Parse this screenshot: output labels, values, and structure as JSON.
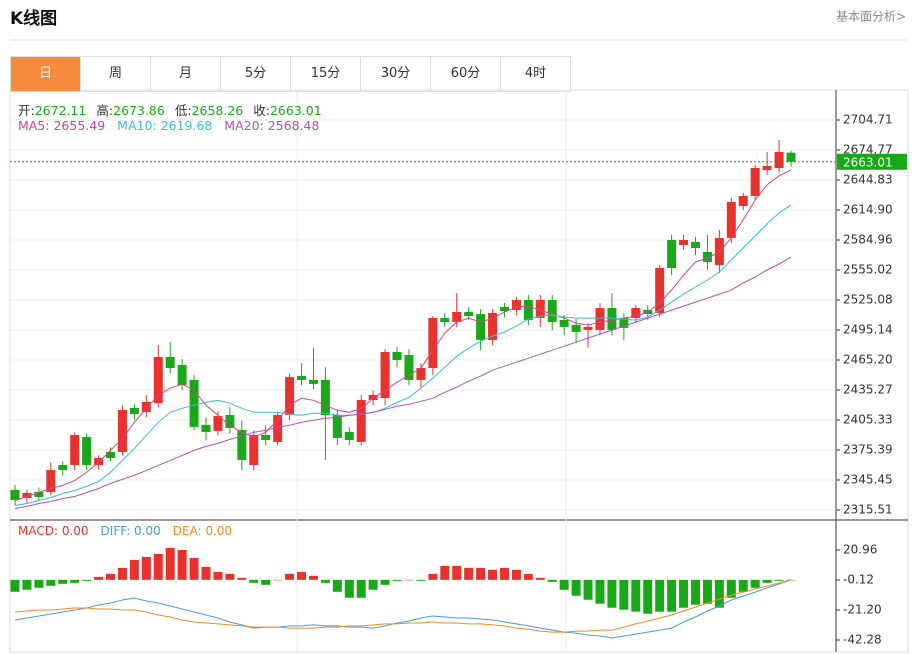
{
  "header": {
    "title": "K线图",
    "link": "基本面分析>"
  },
  "tabs": [
    "日",
    "周",
    "月",
    "5分",
    "15分",
    "30分",
    "60分",
    "4时"
  ],
  "active_tab": 0,
  "active_color": "#f58b3c",
  "quote": [
    {
      "label": "开:",
      "value": "2672.11"
    },
    {
      "label": "高:",
      "value": "2673.86"
    },
    {
      "label": "低:",
      "value": "2658.26"
    },
    {
      "label": "收:",
      "value": "2663.01"
    }
  ],
  "quote_color": "#18a818",
  "chart_data": [
    {
      "type": "candlestick",
      "ylim": [
        2307.51,
        2729.66
      ],
      "yticks": [
        2704.71,
        2674.77,
        2644.83,
        {
          "value": 2614.9,
          "label": "2614.90"
        },
        2584.96,
        2555.02,
        2525.08,
        2495.14,
        {
          "value": 2465.2,
          "label": "2465.20"
        },
        2435.27,
        2405.33,
        2375.39,
        2345.45,
        2315.51
      ],
      "grid": true,
      "up_color": "#e8322e",
      "down_color": "#18a818",
      "open": [
        2335.5,
        2327.5,
        2333.5,
        2333.5,
        2360.4,
        2360.4,
        2388.4,
        2360.4,
        2373.4,
        2373.4,
        2417.3,
        2413.3,
        2422.3,
        2468.2,
        2460.2,
        2445.3,
        2400.4,
        2394.4,
        2410.3,
        2395.4,
        2360.4,
        2390.4,
        2383.4,
        2410.3,
        2449.3,
        2445.3,
        2445.3,
        2410.3,
        2393.4,
        2383.4,
        2425.3,
        2427.3,
        2473.2,
        2470.2,
        2445.3,
        2457.2,
        2507.1,
        2503.1,
        2513.1,
        2511.1,
        2485.2,
        2518.1,
        2515.1,
        2525.1,
        2507.1,
        2525.1,
        2505.1,
        2500.2,
        2495.2,
        2495.2,
        2517.1,
        2507.1,
        2507.1,
        2515.1,
        2512.1,
        2585.0,
        2580.0,
        2583.0,
        2573.0,
        2560.0,
        2587.0,
        2618.9,
        2628.9,
        2654.8,
        2656.8,
        2672.11
      ],
      "high": [
        2340.5,
        2336,
        2338,
        2363.4,
        2364,
        2393,
        2392,
        2370,
        2378,
        2420,
        2421,
        2430,
        2480.2,
        2483.2,
        2466,
        2450,
        2408,
        2414,
        2418,
        2405,
        2395,
        2400,
        2413,
        2452,
        2462,
        2477.2,
        2458,
        2416,
        2398,
        2430,
        2435,
        2476,
        2478,
        2476,
        2462,
        2509,
        2512,
        2532.1,
        2518,
        2516,
        2516,
        2522,
        2528,
        2530,
        2530,
        2530,
        2510,
        2506,
        2502,
        2522,
        2532,
        2512,
        2520,
        2520,
        2560,
        2590,
        2590,
        2588,
        2590,
        2595,
        2627,
        2632,
        2660,
        2672.8,
        2684.8,
        2673.86
      ],
      "low": [
        2320.5,
        2322,
        2325,
        2330.5,
        2350,
        2355,
        2355,
        2356,
        2364,
        2370,
        2405,
        2408,
        2418,
        2452,
        2435,
        2395,
        2385,
        2390,
        2392,
        2355.4,
        2355,
        2380,
        2380,
        2405,
        2440,
        2436,
        2365.4,
        2380,
        2380,
        2380,
        2420,
        2420,
        2458,
        2440,
        2438,
        2450,
        2498,
        2498,
        2505,
        2475,
        2480,
        2508,
        2510,
        2500,
        2498,
        2495,
        2490,
        2482,
        2478,
        2490,
        2490,
        2485,
        2502,
        2505,
        2508,
        2550,
        2575,
        2570,
        2555,
        2552,
        2582,
        2615,
        2625,
        2650,
        2652,
        2658.26
      ],
      "close": [
        2325.5,
        2332.5,
        2328.5,
        2355.4,
        2355.4,
        2390.4,
        2360.4,
        2367.4,
        2367.4,
        2415.3,
        2411.3,
        2423.3,
        2468.2,
        2457.2,
        2440.3,
        2398.4,
        2393.4,
        2409.3,
        2397.4,
        2365.4,
        2390.4,
        2385.4,
        2410.3,
        2448.3,
        2445.3,
        2441.3,
        2410.3,
        2387.4,
        2385.4,
        2425.3,
        2430.3,
        2473.2,
        2465.2,
        2445.3,
        2457.2,
        2507.1,
        2503.1,
        2513.1,
        2509.1,
        2485.2,
        2512.1,
        2514.1,
        2525.1,
        2505.1,
        2525.1,
        2503.1,
        2498.2,
        2493.2,
        2498.2,
        2517.1,
        2495.2,
        2497.2,
        2517.1,
        2511.1,
        2557.0,
        2557.0,
        2585.0,
        2577.0,
        2563.0,
        2587.0,
        2622.9,
        2628.9,
        2656.8,
        2658.8,
        2672.8,
        2663.01
      ],
      "last_price": 2663.01,
      "last_price_color": "#18a818",
      "series": [
        {
          "label": "MA5: 2655.49",
          "color": "#d9418c",
          "values": [
            2325,
            2329,
            2333,
            2337,
            2340,
            2345,
            2353,
            2363,
            2375,
            2387,
            2403,
            2417,
            2430,
            2437,
            2441,
            2435,
            2420,
            2410,
            2400,
            2393,
            2388,
            2393,
            2405,
            2420,
            2427,
            2425,
            2420,
            2415,
            2413,
            2417,
            2427,
            2435,
            2443,
            2450,
            2457,
            2475,
            2492,
            2503,
            2507,
            2503,
            2507,
            2513,
            2518,
            2519,
            2515,
            2511,
            2507,
            2502,
            2500,
            2503,
            2505,
            2507,
            2509,
            2513,
            2522,
            2535,
            2550,
            2563,
            2567,
            2573,
            2587,
            2605,
            2625,
            2640,
            2649,
            2655
          ]
        },
        {
          "label": "MA10: 2619.68",
          "color": "#3bbbd8",
          "values": [
            2320,
            2322,
            2325,
            2328,
            2332,
            2335,
            2339,
            2344,
            2353,
            2365,
            2377,
            2390,
            2403,
            2413,
            2417,
            2420,
            2423,
            2425,
            2422,
            2417,
            2413,
            2413,
            2413,
            2411,
            2410,
            2412,
            2412,
            2410,
            2410,
            2411,
            2413,
            2417,
            2423,
            2428,
            2437,
            2447,
            2458,
            2469,
            2477,
            2484,
            2489,
            2493,
            2499,
            2506,
            2509,
            2510,
            2508,
            2507,
            2507,
            2507,
            2507,
            2506,
            2505,
            2508,
            2515,
            2523,
            2531,
            2538,
            2545,
            2553,
            2565,
            2577,
            2589,
            2601,
            2612,
            2620
          ]
        },
        {
          "label": "MA20: 2568.48",
          "color": "#b24fc4",
          "values": [
            2317,
            2319,
            2322,
            2324,
            2327,
            2329,
            2333,
            2337,
            2342,
            2346,
            2350,
            2355,
            2360,
            2365,
            2370,
            2375,
            2379,
            2382,
            2386,
            2389,
            2393,
            2395,
            2398,
            2400,
            2403,
            2405,
            2407,
            2408,
            2410,
            2411,
            2413,
            2416,
            2419,
            2421,
            2424,
            2427,
            2433,
            2438,
            2444,
            2449,
            2455,
            2459,
            2463,
            2467,
            2471,
            2475,
            2479,
            2483,
            2487,
            2491,
            2495,
            2499,
            2503,
            2507,
            2511,
            2515,
            2519,
            2523,
            2527,
            2531,
            2535,
            2542,
            2548,
            2555,
            2561,
            2568
          ]
        }
      ]
    },
    {
      "type": "macd",
      "ylim": [
        -50.71,
        41.34
      ],
      "yticks": [
        20.96,
        -0.12,
        {
          "value": -21.2,
          "label": "-21.20"
        },
        -42.28
      ],
      "up_color": "#e8322e",
      "down_color": "#18a818",
      "histogram": {
        "label": "MACD: 0.00",
        "values": [
          -8.4,
          -7,
          -5.6,
          -4.2,
          -2.8,
          -2.1,
          -0.7,
          2.1,
          4.2,
          8.4,
          14,
          16.1,
          18.2,
          22.4,
          21,
          15.4,
          9.1,
          5.6,
          4.2,
          1.4,
          -2.1,
          -3.5,
          0,
          4.2,
          5.6,
          2.8,
          -2.1,
          -8.4,
          -12.6,
          -12.6,
          -7,
          -3.5,
          -0.7,
          0,
          -0.7,
          4.2,
          9.8,
          9.8,
          8.4,
          8.4,
          7,
          8.4,
          7,
          4.2,
          1.4,
          -1.4,
          -7,
          -11.2,
          -14,
          -16.8,
          -19.6,
          -21,
          -22.4,
          -23.8,
          -22.4,
          -22.4,
          -19.6,
          -17.5,
          -16.8,
          -19.6,
          -12.6,
          -8.4,
          -5.6,
          -2.1,
          -0.7,
          0
        ]
      },
      "series": [
        {
          "label": "DIFF: 0.00",
          "color": "#4a9be0",
          "values": [
            -28.2,
            -26.8,
            -25.4,
            -24.0,
            -22.6,
            -21.2,
            -19.8,
            -17.7,
            -16.3,
            -14.2,
            -12.8,
            -14.9,
            -16.3,
            -18.4,
            -20.5,
            -22.6,
            -24.7,
            -26.8,
            -29.6,
            -31.7,
            -33.9,
            -33.2,
            -33.2,
            -32.4,
            -32.4,
            -31.7,
            -32.4,
            -32.4,
            -33.2,
            -33.2,
            -33.9,
            -32.4,
            -30.3,
            -28.9,
            -26.8,
            -25.4,
            -26.1,
            -26.8,
            -26.8,
            -27.5,
            -28.2,
            -29.6,
            -31.0,
            -32.4,
            -33.9,
            -35.3,
            -36.7,
            -37.4,
            -38.8,
            -39.5,
            -40.9,
            -39.5,
            -38.1,
            -36.7,
            -35.3,
            -33.9,
            -29.6,
            -26.1,
            -21.9,
            -18.4,
            -14.2,
            -11.4,
            -8.6,
            -5.7,
            -2.9,
            0
          ]
        },
        {
          "label": "DEA: 0.00",
          "color": "#f08a24",
          "values": [
            -22.6,
            -21.9,
            -21.2,
            -21.2,
            -20.5,
            -19.8,
            -19.8,
            -20.5,
            -20.5,
            -21.2,
            -21.2,
            -22.6,
            -24.7,
            -26.1,
            -28.2,
            -29.6,
            -30.3,
            -31.0,
            -31.7,
            -32.4,
            -33.2,
            -33.2,
            -33.2,
            -33.9,
            -33.9,
            -33.9,
            -33.2,
            -33.2,
            -32.4,
            -32.4,
            -31.7,
            -31.0,
            -31.0,
            -30.3,
            -30.3,
            -29.6,
            -30.3,
            -30.3,
            -31.0,
            -31.0,
            -31.7,
            -32.4,
            -33.9,
            -34.6,
            -36.0,
            -36.7,
            -36.7,
            -36.0,
            -36.0,
            -35.3,
            -35.3,
            -33.2,
            -31.0,
            -28.9,
            -26.8,
            -24.7,
            -21.9,
            -19.1,
            -16.3,
            -13.5,
            -10.7,
            -8.6,
            -6.4,
            -4.3,
            -2.2,
            0
          ]
        }
      ]
    }
  ]
}
